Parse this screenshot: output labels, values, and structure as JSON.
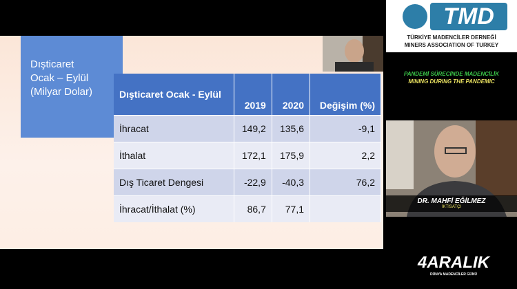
{
  "slide": {
    "title": [
      "Dışticaret",
      "Ocak – Eylül",
      "(Milyar Dolar)"
    ]
  },
  "table": {
    "header": [
      "Dışticaret Ocak - Eylül",
      "2019",
      "2020",
      "Değişim (%)"
    ],
    "rows": [
      [
        "İhracat",
        "149,2",
        "135,6",
        "-9,1"
      ],
      [
        "İthalat",
        "172,1",
        "175,9",
        "2,2"
      ],
      [
        "Dış Ticaret Dengesi",
        "-22,9",
        "-40,3",
        "76,2"
      ],
      [
        "İhracat/İthalat (%)",
        "86,7",
        "77,1"
      ]
    ]
  },
  "logo": {
    "name": "TMD",
    "line1": "TÜRKİYE MADENCİLER DERNEĞİ",
    "line2": "MINERS ASSOCIATION OF TURKEY"
  },
  "banner": {
    "line1": "PANDEMİ SÜRECİNDE MADENCİLİK",
    "line2": "MINING DURING THE PANDEMIC"
  },
  "speaker": {
    "name": "DR. MAHFİ EĞİLMEZ",
    "role": "İKTİSATÇI"
  },
  "event": {
    "name": "4ARALIK",
    "subtitle": "DÜNYA MADENCİLER GÜNÜ"
  }
}
